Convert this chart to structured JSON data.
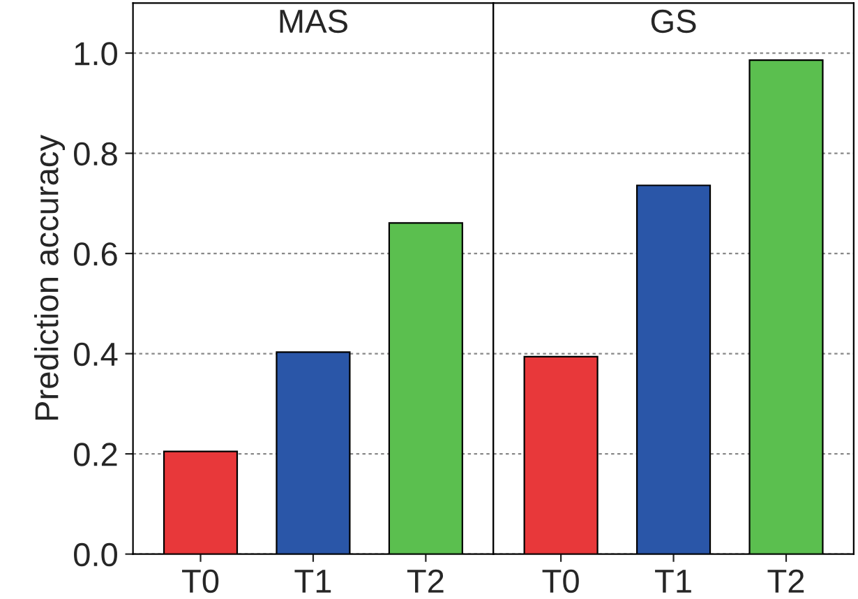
{
  "chart_data": [
    {
      "type": "bar",
      "title": "MAS",
      "ylabel": "Prediction accuracy",
      "categories": [
        "T0",
        "T1",
        "T2"
      ],
      "values": [
        0.205,
        0.403,
        0.661
      ],
      "colors": [
        "#e8383a",
        "#2a56a8",
        "#5bbf4f"
      ],
      "ylim": [
        0,
        1.1
      ],
      "yticks": [
        {
          "value": 0,
          "label": "0.0"
        },
        0.2,
        0.4,
        0.6,
        0.8,
        {
          "value": 1,
          "label": "1.0"
        }
      ],
      "grid": "y"
    },
    {
      "type": "bar",
      "title": "GS",
      "categories": [
        "T0",
        "T1",
        "T2"
      ],
      "values": [
        0.394,
        0.736,
        0.986
      ],
      "colors": [
        "#e8383a",
        "#2a56a8",
        "#5bbf4f"
      ],
      "ylim": [
        0,
        1.1
      ],
      "yticks": [
        0,
        0.2,
        0.4,
        0.6,
        0.8,
        1
      ],
      "grid": "y",
      "tick_labels": "x"
    }
  ]
}
